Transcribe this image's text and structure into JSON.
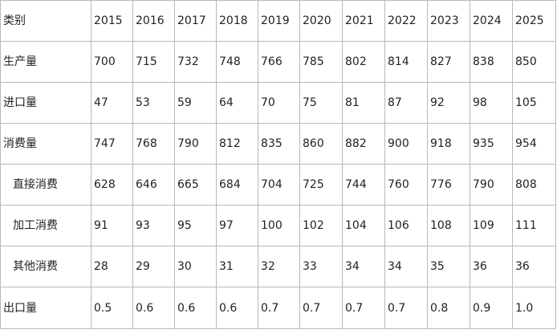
{
  "table": {
    "header": [
      "类别",
      "2015",
      "2016",
      "2017",
      "2018",
      "2019",
      "2020",
      "2021",
      "2022",
      "2023",
      "2024",
      "2025"
    ],
    "rows": [
      {
        "label": "生产量",
        "indent": false,
        "values": [
          "700",
          "715",
          "732",
          "748",
          "766",
          "785",
          "802",
          "814",
          "827",
          "838",
          "850"
        ]
      },
      {
        "label": "进口量",
        "indent": false,
        "values": [
          "47",
          "53",
          "59",
          "64",
          "70",
          "75",
          "81",
          "87",
          "92",
          "98",
          "105"
        ]
      },
      {
        "label": "消费量",
        "indent": false,
        "values": [
          "747",
          "768",
          "790",
          "812",
          "835",
          "860",
          "882",
          "900",
          "918",
          "935",
          "954"
        ]
      },
      {
        "label": "直接消费",
        "indent": true,
        "values": [
          "628",
          "646",
          "665",
          "684",
          "704",
          "725",
          "744",
          "760",
          "776",
          "790",
          "808"
        ]
      },
      {
        "label": "加工消费",
        "indent": true,
        "values": [
          "91",
          "93",
          "95",
          "97",
          "100",
          "102",
          "104",
          "106",
          "108",
          "109",
          "111"
        ]
      },
      {
        "label": "其他消费",
        "indent": true,
        "values": [
          "28",
          "29",
          "30",
          "31",
          "32",
          "33",
          "34",
          "34",
          "35",
          "36",
          "36"
        ]
      },
      {
        "label": "出口量",
        "indent": false,
        "values": [
          "0.5",
          "0.6",
          "0.6",
          "0.6",
          "0.7",
          "0.7",
          "0.7",
          "0.7",
          "0.8",
          "0.9",
          "1.0"
        ]
      }
    ]
  }
}
